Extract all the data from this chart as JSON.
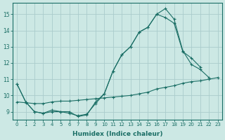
{
  "xlabel": "Humidex (Indice chaleur)",
  "bg_color": "#cce8e4",
  "grid_color": "#aacccc",
  "line_color": "#1a6e65",
  "xlim": [
    -0.5,
    23.5
  ],
  "ylim": [
    8.5,
    15.7
  ],
  "yticks": [
    9,
    10,
    11,
    12,
    13,
    14,
    15
  ],
  "xticks": [
    0,
    1,
    2,
    3,
    4,
    5,
    6,
    7,
    8,
    9,
    10,
    11,
    12,
    13,
    14,
    15,
    16,
    17,
    18,
    19,
    20,
    21,
    22,
    23
  ],
  "line1_x": [
    0,
    1,
    2,
    3,
    4,
    5,
    6,
    7,
    8,
    9,
    10,
    11,
    12,
    13,
    14,
    15,
    16,
    17,
    18,
    19,
    20,
    21,
    22
  ],
  "line1_y": [
    10.7,
    9.6,
    9.0,
    8.9,
    9.0,
    9.0,
    8.9,
    8.75,
    8.85,
    9.5,
    10.1,
    11.5,
    12.5,
    13.0,
    13.9,
    14.2,
    15.0,
    15.35,
    14.7,
    12.75,
    11.9,
    11.6,
    11.1
  ],
  "line2_x": [
    0,
    1,
    2,
    3,
    4,
    5,
    6,
    7,
    8,
    9,
    10,
    11,
    12,
    13,
    14,
    15,
    16,
    17,
    18,
    19,
    20,
    21,
    22,
    23
  ],
  "line2_y": [
    9.6,
    9.55,
    9.5,
    9.5,
    9.6,
    9.65,
    9.65,
    9.7,
    9.75,
    9.8,
    9.85,
    9.9,
    9.95,
    10.0,
    10.1,
    10.2,
    10.4,
    10.5,
    10.6,
    10.75,
    10.85,
    10.9,
    11.0,
    11.1
  ],
  "line3_x": [
    0,
    1,
    2,
    3,
    4,
    5,
    6,
    7,
    8,
    9,
    10,
    11,
    12,
    13,
    14,
    15,
    16,
    17,
    18,
    19,
    20,
    21,
    22,
    23
  ],
  "line3_y": [
    10.7,
    9.6,
    9.0,
    8.9,
    9.1,
    9.0,
    9.0,
    8.7,
    8.8,
    9.6,
    10.1,
    11.5,
    12.5,
    13.0,
    13.9,
    14.2,
    15.0,
    14.8,
    14.45,
    12.7,
    12.3,
    11.75,
    null,
    null
  ]
}
